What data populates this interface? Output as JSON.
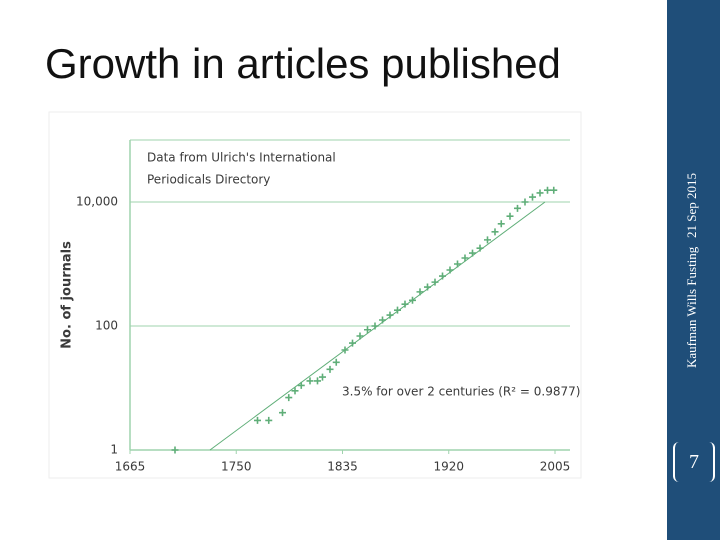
{
  "slide": {
    "title": "Growth in articles published",
    "author": "Kaufman Wills Fusting",
    "date": "21 Sep 2015",
    "page_number": "7"
  },
  "chart_data": {
    "type": "scatter",
    "annotation_lines": [
      "Data from Ulrich's International",
      "Periodicals Directory"
    ],
    "fit_label": "3.5% for over 2 centuries (R² = 0.9877)",
    "y_label": "No. of journals",
    "log_y": true,
    "xlim": [
      1665,
      2005
    ],
    "xticks": [
      1665,
      1750,
      1835,
      1920,
      2005
    ],
    "ylim": [
      1,
      100000
    ],
    "yticks": [
      1,
      100,
      {
        "value": 10000,
        "label": "10,000"
      }
    ],
    "grid": true,
    "series": [
      {
        "color": "#5fae78",
        "x": [
          1701,
          1767,
          1776,
          1787,
          1792,
          1797,
          1802,
          1809,
          1815,
          1819,
          1825,
          1830,
          1837,
          1843,
          1849,
          1855,
          1861,
          1867,
          1873,
          1879,
          1885,
          1891,
          1897,
          1903,
          1909,
          1915,
          1921,
          1927,
          1933,
          1939,
          1945,
          1951,
          1957,
          1962,
          1969,
          1975,
          1981,
          1987,
          1993,
          1999,
          2004
        ],
        "values": [
          1,
          3,
          3,
          4,
          7,
          9,
          11,
          13,
          13,
          15,
          20,
          26,
          41,
          53,
          69,
          87,
          100,
          125,
          150,
          180,
          225,
          260,
          355,
          425,
          510,
          640,
          800,
          1000,
          1250,
          1500,
          1800,
          2450,
          3300,
          4450,
          5900,
          7900,
          10000,
          12000,
          14000,
          15500,
          15500
        ]
      }
    ],
    "fit": {
      "color": "#5fae78",
      "x": [
        1729,
        1997
      ],
      "values": [
        1,
        10000
      ]
    }
  }
}
